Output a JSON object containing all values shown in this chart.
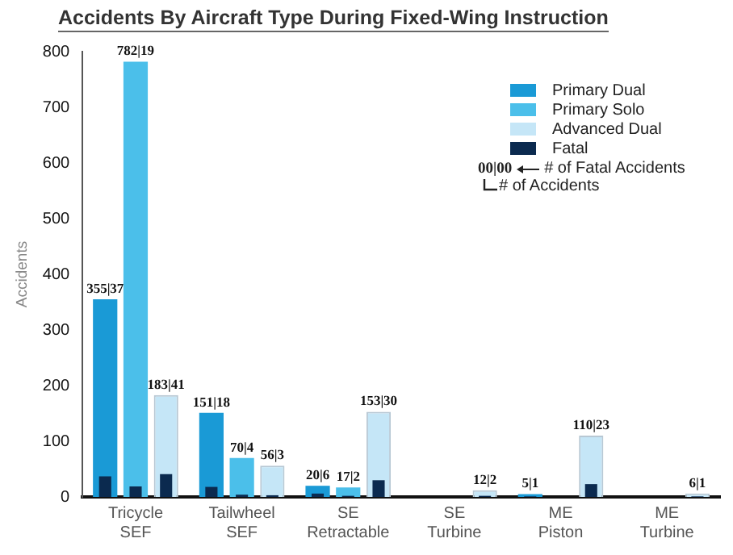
{
  "chart_data": {
    "type": "bar",
    "title": "Accidents By Aircraft Type During Fixed-Wing Instruction",
    "ylabel": "Accidents",
    "categories": [
      "Tricycle\nSEF",
      "Tailwheel\nSEF",
      "SE\nRetractable",
      "SE\nTurbine",
      "ME\nPiston",
      "ME\nTurbine"
    ],
    "series": [
      {
        "name": "Primary Dual",
        "color": "#1a9ad6",
        "values": [
          355,
          151,
          20,
          null,
          5,
          null
        ],
        "value_labels": [
          "355|37",
          "151|18",
          "20|6",
          null,
          "5|1",
          null
        ]
      },
      {
        "name": "Primary Solo",
        "color": "#4bbfea",
        "values": [
          782,
          70,
          17,
          null,
          null,
          null
        ],
        "value_labels": [
          "782|19",
          "70|4",
          "17|2",
          null,
          null,
          null
        ]
      },
      {
        "name": "Advanced Dual",
        "color": "#c5e6f7",
        "values": [
          183,
          56,
          153,
          12,
          110,
          6
        ],
        "value_labels": [
          "183|41",
          "56|3",
          "153|30",
          "12|2",
          "110|23",
          "6|1"
        ]
      },
      {
        "name": "Fatal",
        "color": "#0b2a4f",
        "values": [
          37,
          18,
          6,
          null,
          1,
          null
        ]
      },
      {
        "color": "#0b2a4f",
        "values": [
          19,
          4,
          2,
          null,
          null,
          null
        ]
      },
      {
        "color": "#0b2a4f",
        "values": [
          41,
          3,
          30,
          2,
          23,
          1
        ]
      }
    ],
    "ylim": [
      0,
      800
    ],
    "yticks": [
      0,
      100,
      200,
      300,
      400,
      500,
      600,
      700,
      800
    ],
    "grid": false,
    "legend": "top right",
    "annotations": [
      "00|00",
      "# of Fatal Accidents",
      "# of Accidents"
    ]
  }
}
